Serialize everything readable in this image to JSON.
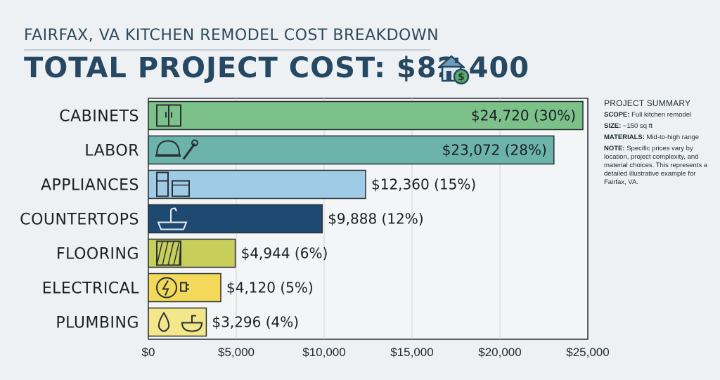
{
  "header": {
    "subtitle": "FAIRFAX, VA KITCHEN REMODEL COST BREAKDOWN",
    "title": "TOTAL PROJECT COST: $82,400",
    "title_icon": "house-dollar-icon"
  },
  "summary": {
    "heading": "PROJECT SUMMARY",
    "scope_label": "SCOPE:",
    "scope_value": "Full kitchen remodel",
    "size_label": "SIZE:",
    "size_value": "~150 sq ft",
    "materials_label": "MATERIALS:",
    "materials_value": "Mid-to-high range",
    "note_label": "NOTE:",
    "note_value": "Specific prices vary by location, project complexity, and material choices. This represents a detailed illustrative example for Fairfax, VA."
  },
  "chart_data": {
    "type": "bar",
    "orientation": "horizontal",
    "title": "TOTAL PROJECT COST: $82,400",
    "subtitle": "FAIRFAX, VA KITCHEN REMODEL COST BREAKDOWN",
    "categories": [
      "CABINETS",
      "LABOR",
      "APPLIANCES",
      "COUNTERTOPS",
      "FLOORING",
      "ELECTRICAL",
      "PLUMBING"
    ],
    "values": [
      24720,
      23072,
      12360,
      9888,
      4944,
      4120,
      3296
    ],
    "data_labels": [
      "$24,720 (30%)",
      "$23,072 (28%)",
      "$12,360 (15%)",
      "$9,888 (12%)",
      "$4,944 (6%)",
      "$4,120 (5%)",
      "$3,296 (4%)"
    ],
    "bar_colors": [
      "#7cc18a",
      "#6cb3ab",
      "#9fcbe6",
      "#1e4a72",
      "#c7cf5a",
      "#f2d95a",
      "#f4e68a"
    ],
    "icons": [
      "cabinet-icon",
      "hardhat-wrench-icon",
      "fridge-oven-icon",
      "sink-counter-icon",
      "floor-tile-icon",
      "electric-plug-icon",
      "water-drop-sink-icon"
    ],
    "xlim": [
      0,
      25000
    ],
    "x_ticks": [
      0,
      5000,
      10000,
      15000,
      20000,
      25000
    ],
    "x_tick_labels": [
      "$0",
      "$5,000",
      "$10,000",
      "$15,000",
      "$20,000",
      "$25,000"
    ],
    "xlabel": "",
    "ylabel": "",
    "grid": true,
    "legend": "none"
  }
}
